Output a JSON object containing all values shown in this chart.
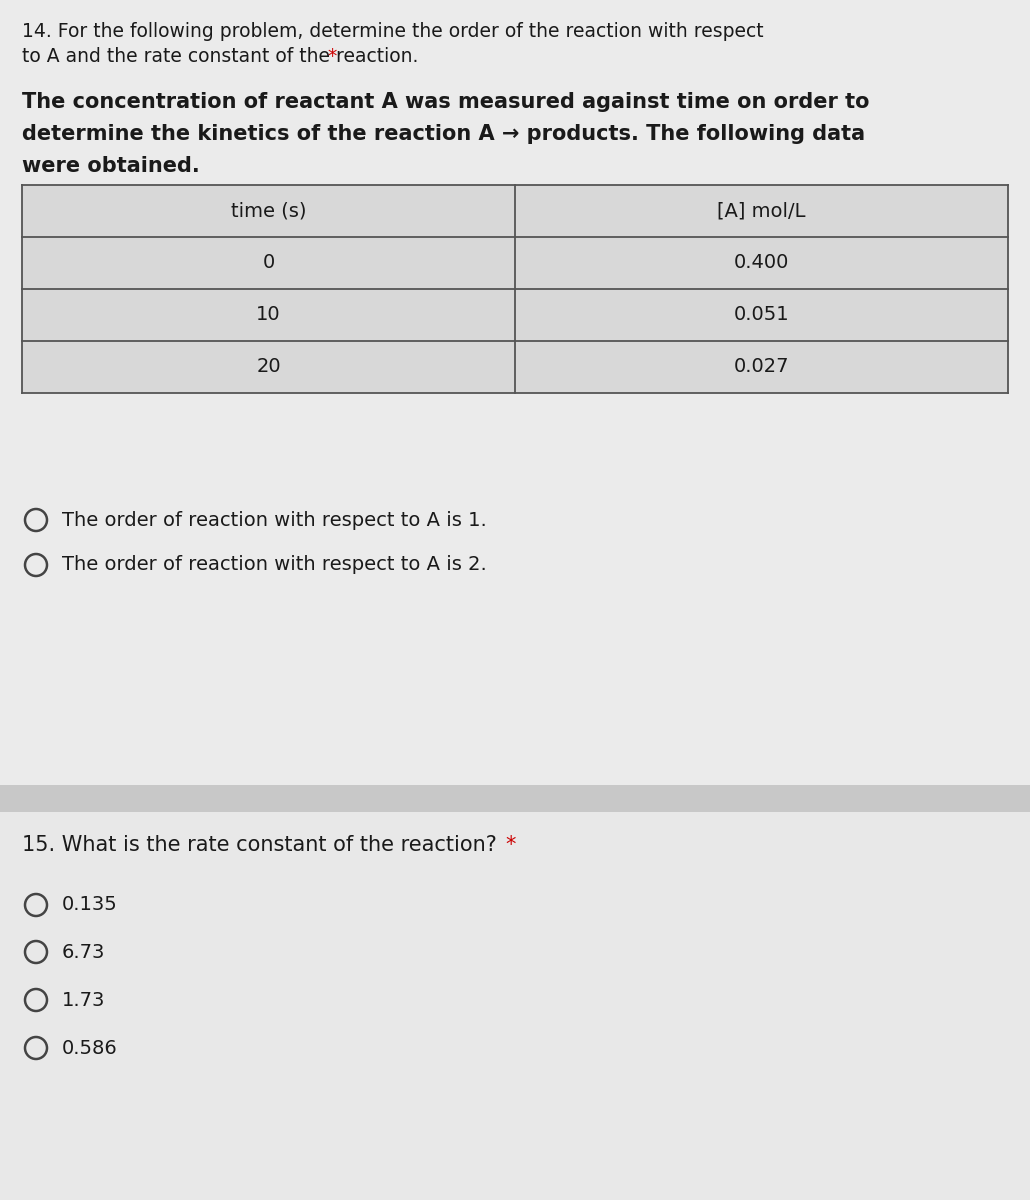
{
  "bg_main": "#e0e0e0",
  "bg_section1": "#ebebeb",
  "bg_section2": "#e8e8e8",
  "bg_separator": "#c8c8c8",
  "bg_table_row_header": "#d8d8d8",
  "bg_table_row": "#d4d4d4",
  "text_color": "#1a1a1a",
  "asterisk_color": "#cc0000",
  "table_border": "#555555",
  "q14_title_line1": "14. For the following problem, determine the order of the reaction with respect",
  "q14_title_line2": "to A and the rate constant of the reaction.",
  "q14_body_line1": "The concentration of reactant A was measured against time on order to",
  "q14_body_line2": "determine the kinetics of the reaction A → products. The following data",
  "q14_body_line3": "were obtained.",
  "table_headers": [
    "time (s)",
    "[A] mol/L"
  ],
  "table_data": [
    [
      "0",
      "0.400"
    ],
    [
      "10",
      "0.051"
    ],
    [
      "20",
      "0.027"
    ]
  ],
  "option_q14_1": "The order of reaction with respect to A is 1.",
  "option_q14_2": "The order of reaction with respect to A is 2.",
  "q15_title_main": "15. What is the rate constant of the reaction?",
  "options_q15": [
    "0.135",
    "6.73",
    "1.73",
    "0.586"
  ],
  "title_fontsize": 13.5,
  "body_fontsize": 15,
  "table_fontsize": 14,
  "option_fontsize": 14,
  "q15_title_fontsize": 15
}
